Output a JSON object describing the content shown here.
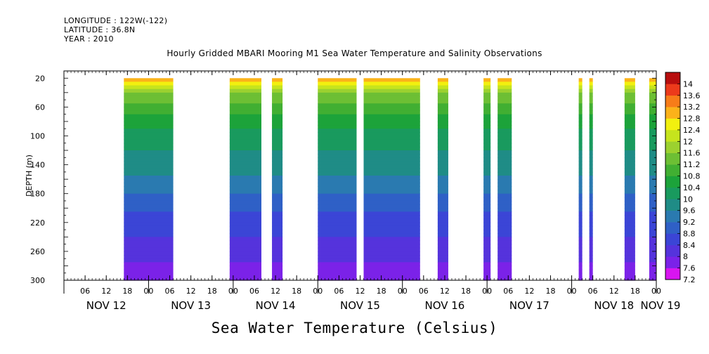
{
  "header": {
    "longitude": "LONGITUDE : 122W(-122)",
    "latitude": "LATITUDE : 36.8N",
    "year": "YEAR : 2010"
  },
  "chart_data": {
    "type": "heatmap",
    "title": "Hourly Gridded MBARI Mooring M1 Sea Water Temperature and Salinity Observations",
    "xlabel": "Sea Water Temperature (Celsius)",
    "ylabel": "DEPTH (m)",
    "ylim": [
      300,
      10
    ],
    "y_ticks": [
      "20",
      "60",
      "100",
      "140",
      "180",
      "220",
      "260",
      "300"
    ],
    "x_hour_ticks": [
      "06",
      "12",
      "18",
      "00",
      "06",
      "12",
      "18",
      "00",
      "06",
      "12",
      "18",
      "00",
      "06",
      "12",
      "18",
      "00",
      "06",
      "12",
      "18",
      "00",
      "06",
      "12",
      "18",
      "00",
      "06",
      "12",
      "18",
      "00"
    ],
    "x_day_labels": [
      "NOV 12",
      "NOV 13",
      "NOV 14",
      "NOV 15",
      "NOV 16",
      "NOV 17",
      "NOV 18",
      "NOV 19"
    ],
    "x_range_hours_from_nov12_00": [
      0,
      168
    ],
    "colorbar": {
      "labels": [
        "14",
        "13.6",
        "13.2",
        "12.8",
        "12.4",
        "12",
        "11.6",
        "11.2",
        "10.8",
        "10.4",
        "10",
        "9.6",
        "9.2",
        "8.8",
        "8.4",
        "8",
        "7.6",
        "7.2"
      ],
      "range": [
        7.0,
        14.2
      ],
      "colors": [
        "#d815f0",
        "#7b22e8",
        "#5533dc",
        "#3b45d6",
        "#2f60c6",
        "#2a7ab0",
        "#1f8c86",
        "#199a5e",
        "#1ca33a",
        "#41af32",
        "#6dbf34",
        "#9cd12f",
        "#c6e41d",
        "#f2f00f",
        "#fbb21a",
        "#f77c19",
        "#ec3a1b",
        "#b80e0e"
      ]
    },
    "observation_segments": [
      {
        "start": "NOV 12 17:00",
        "end": "NOV 13 07:00"
      },
      {
        "start": "NOV 13 23:00",
        "end": "NOV 14 08:00"
      },
      {
        "start": "NOV 14 11:00",
        "end": "NOV 14 14:00"
      },
      {
        "start": "NOV 14 24:00",
        "end": "NOV 15 11:00"
      },
      {
        "start": "NOV 15 13:00",
        "end": "NOV 16 05:00"
      },
      {
        "start": "NOV 16 10:00",
        "end": "NOV 16 13:00"
      },
      {
        "start": "NOV 16 23:00",
        "end": "NOV 17 01:00"
      },
      {
        "start": "NOV 17 03:00",
        "end": "NOV 17 07:00"
      },
      {
        "start": "NOV 18 02:00",
        "end": "NOV 18 03:00"
      },
      {
        "start": "NOV 18 05:00",
        "end": "NOV 18 06:00"
      },
      {
        "start": "NOV 18 15:00",
        "end": "NOV 18 18:00"
      },
      {
        "start": "NOV 18 22:00",
        "end": "NOV 19 00:00"
      }
    ],
    "temperature_profile": {
      "depth": [
        20,
        30,
        40,
        60,
        100,
        140,
        180,
        220,
        260,
        300
      ],
      "temp": [
        12.9,
        12.0,
        11.4,
        10.8,
        10.0,
        9.6,
        9.0,
        8.4,
        8.0,
        7.5
      ]
    }
  }
}
